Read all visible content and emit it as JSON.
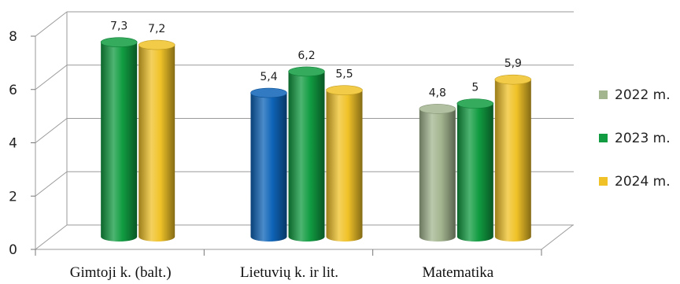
{
  "chart_data": {
    "type": "bar",
    "categories": [
      "Gimtoji k. (balt.)",
      "Lietuvių k. ir lit.",
      "Matematika"
    ],
    "series": [
      {
        "name": "2022 m.",
        "color": "#a3b58f",
        "values": [
          null,
          5.4,
          4.8
        ],
        "value_labels": [
          "",
          "5,4",
          "4,8"
        ]
      },
      {
        "name": "2023 m.",
        "color": "#119c41",
        "values": [
          7.3,
          6.2,
          5
        ],
        "value_labels": [
          "7,3",
          "6,2",
          "5"
        ]
      },
      {
        "name": "2024 m.",
        "color": "#f0c228",
        "values": [
          7.2,
          5.5,
          5.9
        ],
        "value_labels": [
          "7,2",
          "5,5",
          "5,9"
        ]
      }
    ],
    "bar_color_overrides": [
      {
        "series": 0,
        "category": 1,
        "color": "#0e64b8"
      }
    ],
    "yticks": [
      "0",
      "2",
      "4",
      "6",
      "8"
    ],
    "ylim": [
      0,
      8
    ],
    "grid": true,
    "legend_position": "right"
  }
}
